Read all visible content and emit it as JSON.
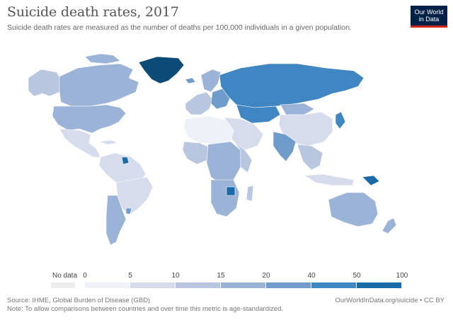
{
  "header": {
    "title": "Suicide death rates, 2017",
    "subtitle": "Suicide death rates are measured as the number of deaths per 100,000 individuals in a given population."
  },
  "logo": {
    "line1": "Our World",
    "line2": "in Data"
  },
  "legend": {
    "no_data_label": "No data",
    "no_data_color": "#ededed",
    "ticks": [
      "0",
      "5",
      "10",
      "15",
      "20",
      "40",
      "50",
      "100"
    ],
    "colors": [
      "#eef1f8",
      "#d6dcec",
      "#b9c6e0",
      "#9ab3d6",
      "#6f9ccb",
      "#3f86c2",
      "#1b6aa8",
      "#0c4a77"
    ]
  },
  "footer": {
    "source": "Source: IHME, Global Burden of Disease (GBD)",
    "note": "Note: To allow comparisons between countries and over time this metric is age-standardized.",
    "url_license": "OurWorldInData.org/suicide • CC BY"
  }
}
